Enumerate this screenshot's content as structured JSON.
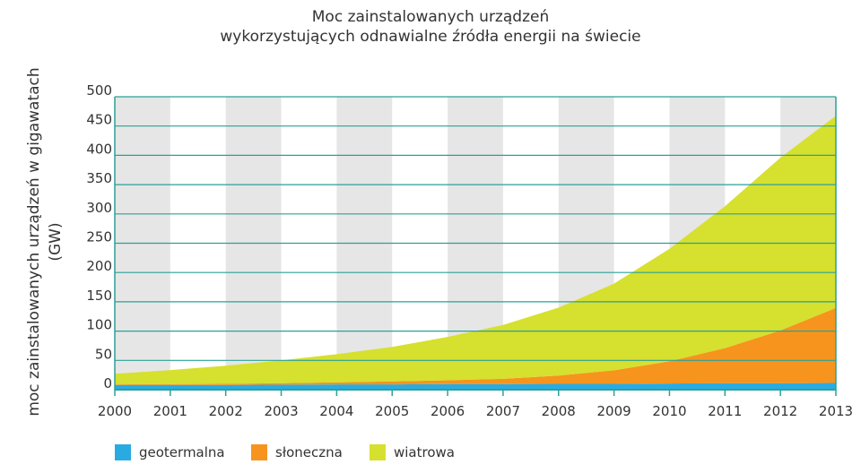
{
  "chart_data": {
    "type": "area",
    "stacked": true,
    "title": "Moc zainstalowanych urządzeń\nwykorzystujących odnawialne źródła energii na świecie",
    "title_lines": [
      "Moc zainstalowanych urządzeń",
      "wykorzystujących odnawialne źródła energii na świecie"
    ],
    "ylabel_lines": [
      "moc zainstalowanych urządzeń w gigawatach",
      "(GW)"
    ],
    "xlabel": "",
    "x": [
      2000,
      2001,
      2002,
      2003,
      2004,
      2005,
      2006,
      2007,
      2008,
      2009,
      2010,
      2011,
      2012,
      2013
    ],
    "x_tick_labels": [
      "2000",
      "2001",
      "2002",
      "2003",
      "2004",
      "2005",
      "2006",
      "2007",
      "2008",
      "2009",
      "2010",
      "2011",
      "2012",
      "2013"
    ],
    "y_ticks": [
      0,
      50,
      100,
      150,
      200,
      250,
      300,
      350,
      400,
      450,
      500
    ],
    "y_tick_labels": [
      "0",
      "50",
      "100",
      "150",
      "200",
      "250",
      "300",
      "350",
      "400",
      "450",
      "500"
    ],
    "xlim": [
      2000,
      2013
    ],
    "ylim": [
      0,
      500
    ],
    "grid": true,
    "legend_position": "bottom",
    "series": [
      {
        "name": "geotermalna",
        "color": "#29abe2",
        "values": [
          8,
          8,
          8,
          8.5,
          9,
          9,
          9.5,
          9.5,
          10,
          10,
          10.5,
          11,
          11,
          11.5
        ]
      },
      {
        "name": "słoneczna",
        "color": "#f7941d",
        "values": [
          1,
          1.5,
          2,
          2.5,
          3.5,
          5,
          6.5,
          9,
          14,
          23,
          38,
          60,
          90,
          128
        ]
      },
      {
        "name": "wiatrowa",
        "color": "#d6e02e",
        "values": [
          18,
          24,
          31,
          39,
          48,
          59,
          74,
          92,
          116,
          148,
          192,
          242,
          295,
          328
        ]
      }
    ],
    "colors": {
      "axis": "#2aa198",
      "gridline": "#2aa198",
      "band": "#e6e6e6",
      "text": "#333333"
    }
  }
}
